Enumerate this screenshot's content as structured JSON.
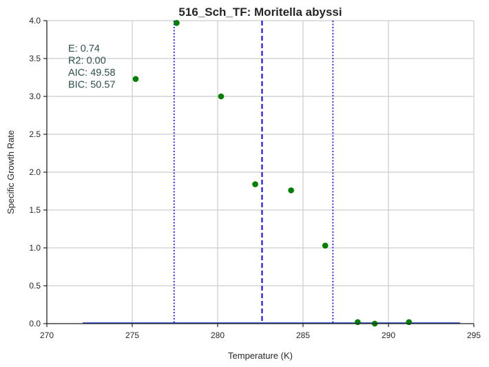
{
  "chart_data": {
    "type": "scatter",
    "title": "516_Sch_TF: Moritella abyssi",
    "xlabel": "Temperature (K)",
    "ylabel": "Specific Growth Rate",
    "xlim": [
      270,
      295
    ],
    "ylim": [
      0,
      4.0
    ],
    "grid": true,
    "xticks": [
      270,
      275,
      280,
      285,
      290,
      295
    ],
    "yticks": [
      0.0,
      0.5,
      1.0,
      1.5,
      2.0,
      2.5,
      3.0,
      3.5,
      4.0
    ],
    "xtick_labels": [
      "270",
      "275",
      "280",
      "285",
      "290",
      "295"
    ],
    "ytick_labels": [
      "0.0",
      "0.5",
      "1.0",
      "1.5",
      "2.0",
      "2.5",
      "3.0",
      "3.5",
      "4.0"
    ],
    "points": {
      "color": "#008000",
      "x": [
        275.2,
        277.6,
        280.2,
        282.2,
        284.3,
        286.3,
        288.2,
        289.2,
        291.2
      ],
      "y": [
        3.23,
        3.97,
        3.0,
        1.84,
        1.76,
        1.03,
        0.02,
        0.0,
        0.02
      ]
    },
    "fit_line": {
      "color": "#1f3fbf",
      "x": [
        272.1,
        294.2
      ],
      "y": [
        0.0,
        0.0
      ]
    },
    "vlines": [
      {
        "x": 277.45,
        "style": "dotted",
        "color": "#0000ff"
      },
      {
        "x": 282.6,
        "style": "dashed",
        "color": "#0000ff"
      },
      {
        "x": 286.75,
        "style": "dotted",
        "color": "#0000ff"
      }
    ],
    "annotations": [
      "E:  0.74",
      "R2:  0.00",
      "AIC: 49.58",
      "BIC: 50.57"
    ]
  }
}
